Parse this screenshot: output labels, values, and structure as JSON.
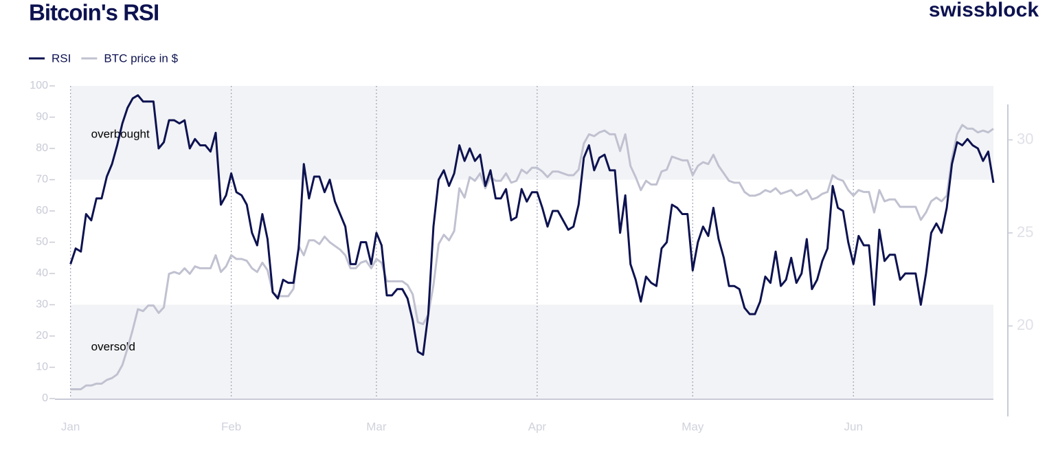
{
  "chart_data": {
    "type": "line",
    "title": "Bitcoin's RSI",
    "brand": "swissblock",
    "x": [
      0,
      1,
      2,
      3,
      4,
      5,
      6,
      7,
      8,
      9,
      10,
      11,
      12,
      13,
      14,
      15,
      16,
      17,
      18,
      19,
      20,
      21,
      22,
      23,
      24,
      25,
      26,
      27,
      28,
      29,
      30,
      31,
      32,
      33,
      34,
      35,
      36,
      37,
      38,
      39,
      40,
      41,
      42,
      43,
      44,
      45,
      46,
      47,
      48,
      49,
      50,
      51,
      52,
      53,
      54,
      55,
      56,
      57,
      58,
      59,
      60,
      61,
      62,
      63,
      64,
      65,
      66,
      67,
      68,
      69,
      70,
      71,
      72,
      73,
      74,
      75,
      76,
      77,
      78,
      79,
      80,
      81,
      82,
      83,
      84,
      85,
      86,
      87,
      88,
      89,
      90,
      91,
      92,
      93,
      94,
      95,
      96,
      97,
      98,
      99,
      100,
      101,
      102,
      103,
      104,
      105,
      106,
      107,
      108,
      109,
      110,
      111,
      112,
      113,
      114,
      115,
      116,
      117,
      118,
      119,
      120,
      121,
      122,
      123,
      124,
      125,
      126,
      127,
      128,
      129,
      130,
      131,
      132,
      133,
      134,
      135,
      136,
      137,
      138,
      139,
      140,
      141,
      142,
      143,
      144,
      145,
      146,
      147,
      148,
      149,
      150,
      151,
      152,
      153,
      154,
      155,
      156,
      157,
      158,
      159,
      160,
      161,
      162,
      163,
      164,
      165,
      166,
      167,
      168,
      169,
      170,
      171,
      172,
      173,
      174,
      175,
      176,
      177,
      178
    ],
    "series": [
      {
        "name": "RSI",
        "color": "#0d1250",
        "axis": "y",
        "values": [
          43,
          48,
          47,
          59,
          57,
          64,
          64,
          71,
          75,
          81,
          88,
          93,
          96,
          97,
          95,
          95,
          95,
          80,
          82,
          89,
          89,
          88,
          89,
          80,
          83,
          81,
          81,
          79,
          85,
          62,
          65,
          72,
          66,
          65,
          62,
          53,
          49,
          59,
          51,
          34,
          32,
          38,
          37,
          37,
          48,
          75,
          64,
          71,
          71,
          66,
          70,
          63,
          59,
          55,
          43,
          43,
          50,
          50,
          43,
          53,
          49,
          33,
          33,
          35,
          35,
          32,
          25,
          15,
          14,
          27,
          55,
          70,
          73,
          68,
          72,
          81,
          76,
          80,
          76,
          78,
          68,
          73,
          64,
          64,
          67,
          57,
          58,
          67,
          63,
          66,
          66,
          61,
          55,
          60,
          60,
          57,
          54,
          55,
          62,
          77,
          81,
          73,
          77,
          78,
          73,
          73,
          53,
          65,
          43,
          38,
          31,
          39,
          37,
          36,
          48,
          50,
          62,
          61,
          59,
          59,
          41,
          50,
          55,
          52,
          61,
          51,
          45,
          36,
          36,
          35,
          29,
          27,
          27,
          31,
          39,
          37,
          47,
          36,
          38,
          45,
          37,
          40,
          51,
          35,
          38,
          44,
          48,
          68,
          61,
          60,
          50,
          43,
          52,
          49,
          49,
          30,
          54,
          44,
          46,
          46,
          38,
          40,
          40,
          40,
          30,
          40,
          53,
          56,
          53,
          61,
          75,
          82,
          81,
          83,
          81,
          80,
          76,
          79,
          69
        ]
      },
      {
        "name": "BTC price in $",
        "color": "#c0c1d0",
        "axis": "y2",
        "values": [
          16.6,
          16.6,
          16.6,
          16.8,
          16.8,
          16.9,
          16.9,
          17.1,
          17.2,
          17.4,
          17.9,
          18.8,
          19.8,
          20.9,
          20.8,
          21.1,
          21.1,
          20.7,
          21.0,
          22.8,
          22.9,
          22.8,
          23.1,
          22.8,
          23.2,
          23.1,
          23.1,
          23.1,
          23.8,
          22.9,
          23.2,
          23.8,
          23.6,
          23.6,
          23.5,
          23.1,
          22.9,
          23.4,
          23.0,
          21.8,
          21.6,
          21.6,
          21.6,
          22.0,
          24.3,
          23.8,
          24.6,
          24.6,
          24.4,
          24.8,
          24.5,
          24.3,
          24.1,
          23.8,
          23.1,
          23.1,
          23.4,
          23.5,
          23.1,
          23.6,
          23.4,
          22.4,
          22.4,
          22.4,
          22.4,
          22.2,
          21.7,
          20.2,
          20.1,
          20.6,
          22.2,
          24.4,
          24.9,
          24.6,
          25.1,
          27.4,
          26.9,
          28.0,
          27.8,
          28.2,
          27.4,
          28.0,
          27.8,
          27.8,
          28.2,
          27.7,
          27.8,
          28.4,
          28.2,
          28.5,
          28.5,
          28.3,
          28.0,
          28.3,
          28.3,
          28.2,
          28.1,
          28.1,
          28.4,
          29.8,
          30.3,
          30.2,
          30.4,
          30.5,
          30.3,
          30.3,
          29.4,
          30.3,
          28.6,
          28.0,
          27.3,
          27.8,
          27.6,
          27.6,
          28.3,
          28.4,
          29.1,
          29.0,
          28.9,
          28.9,
          28.1,
          28.6,
          28.8,
          28.7,
          29.2,
          28.6,
          28.2,
          27.8,
          27.7,
          27.7,
          27.2,
          27.0,
          27.0,
          27.1,
          27.3,
          27.2,
          27.4,
          27.1,
          27.2,
          27.3,
          27.0,
          27.1,
          27.3,
          26.8,
          26.9,
          27.1,
          27.2,
          28.1,
          27.9,
          27.8,
          27.3,
          27.0,
          27.3,
          27.2,
          27.2,
          26.1,
          27.3,
          26.7,
          26.8,
          26.8,
          26.4,
          26.4,
          26.4,
          26.4,
          25.7,
          26.1,
          26.7,
          26.9,
          26.7,
          27.0,
          29.0,
          30.3,
          30.8,
          30.6,
          30.6,
          30.4,
          30.5,
          30.4,
          30.6
        ]
      }
    ],
    "xlim": [
      -3,
      178
    ],
    "xticks": [
      {
        "value": 0,
        "label": "Jan"
      },
      {
        "value": 31,
        "label": "Feb"
      },
      {
        "value": 59,
        "label": "Mar"
      },
      {
        "value": 90,
        "label": "Apr"
      },
      {
        "value": 120,
        "label": "May"
      },
      {
        "value": 151,
        "label": "Jun"
      }
    ],
    "ylim": [
      0,
      100
    ],
    "yticks": [
      0,
      10,
      20,
      30,
      40,
      50,
      60,
      70,
      80,
      90,
      100
    ],
    "y2lim": [
      16.1,
      32.9
    ],
    "y2ticks": [
      20,
      25,
      30
    ],
    "bands": [
      {
        "from": 70,
        "to": 100,
        "label": "overbought"
      },
      {
        "from": 0,
        "to": 30,
        "label": "oversold"
      }
    ],
    "grid": true
  }
}
